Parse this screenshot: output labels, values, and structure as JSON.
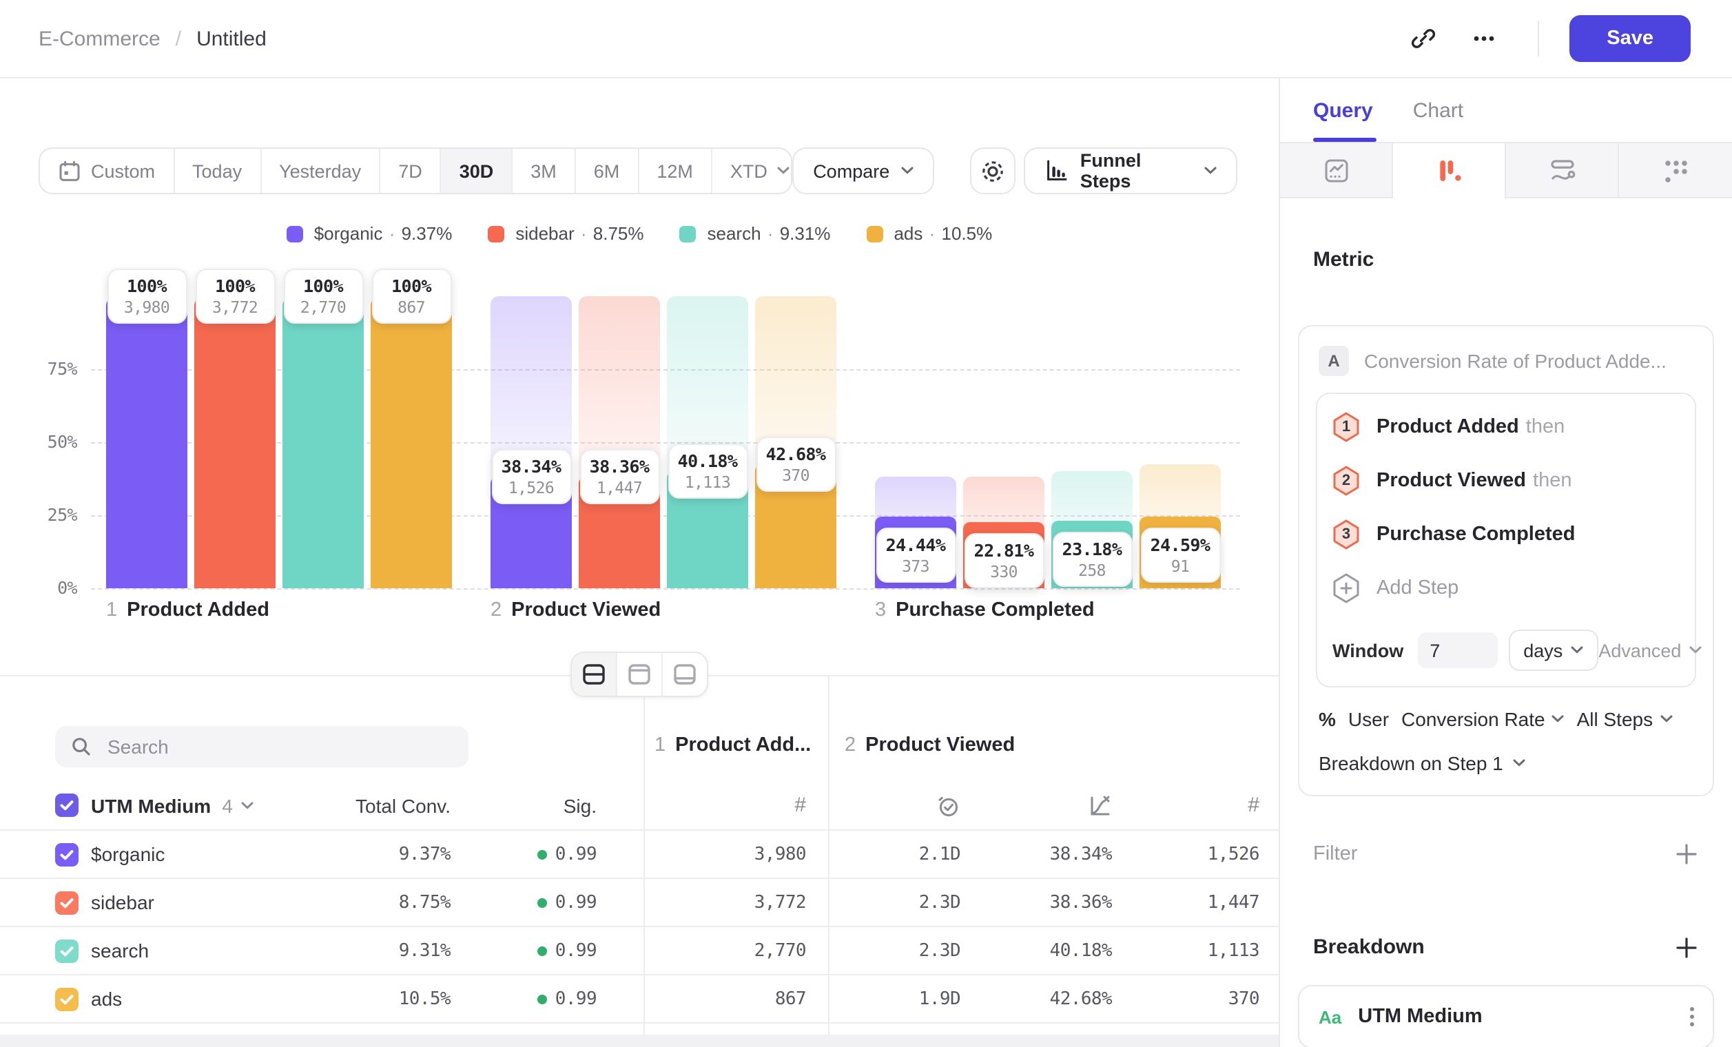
{
  "topbar": {
    "breadcrumb_project": "E-Commerce",
    "breadcrumb_sep": "/",
    "breadcrumb_name": "Untitled",
    "save_label": "Save",
    "icons": [
      "link-icon",
      "more-icon"
    ]
  },
  "toolbar": {
    "date_tabs": [
      {
        "label": "Custom",
        "icon": "calendar-icon"
      },
      {
        "label": "Today"
      },
      {
        "label": "Yesterday"
      },
      {
        "label": "7D"
      },
      {
        "label": "30D",
        "selected": true
      },
      {
        "label": "3M"
      },
      {
        "label": "6M"
      },
      {
        "label": "12M"
      },
      {
        "label": "XTD",
        "chevron": true
      }
    ],
    "compare_label": "Compare",
    "chart_type_label": "Funnel Steps"
  },
  "legend": {
    "separator": "·",
    "items": [
      {
        "name": "$organic",
        "value": "9.37%",
        "color": "#7b5cf5"
      },
      {
        "name": "sidebar",
        "value": "8.75%",
        "color": "#f4694f"
      },
      {
        "name": "search",
        "value": "9.31%",
        "color": "#6fd6c5"
      },
      {
        "name": "ads",
        "value": "10.5%",
        "color": "#f0b23e"
      }
    ]
  },
  "chart_data": {
    "type": "bar",
    "subtype": "funnel-steps",
    "grid": "dashed",
    "ylim": [
      0,
      100
    ],
    "ylabel_ticks": [
      "75%",
      "50%",
      "25%",
      "0%"
    ],
    "steps": [
      {
        "index": "1",
        "label": "Product Added"
      },
      {
        "index": "2",
        "label": "Product Viewed"
      },
      {
        "index": "3",
        "label": "Purchase Completed"
      }
    ],
    "series": [
      {
        "name": "$organic",
        "color": "#7b5cf5",
        "pct": [
          100,
          38.34,
          24.44
        ],
        "pct_labels": [
          "100%",
          "38.34%",
          "24.44%"
        ],
        "counts": [
          "3,980",
          "1,526",
          "373"
        ]
      },
      {
        "name": "sidebar",
        "color": "#f4694f",
        "pct": [
          100,
          38.36,
          22.81
        ],
        "pct_labels": [
          "100%",
          "38.36%",
          "22.81%"
        ],
        "counts": [
          "3,772",
          "1,447",
          "330"
        ]
      },
      {
        "name": "search",
        "color": "#6fd6c5",
        "pct": [
          100,
          40.18,
          23.18
        ],
        "pct_labels": [
          "100%",
          "40.18%",
          "23.18%"
        ],
        "counts": [
          "2,770",
          "1,113",
          "258"
        ]
      },
      {
        "name": "ads",
        "color": "#f0b23e",
        "pct": [
          100,
          42.68,
          24.59
        ],
        "pct_labels": [
          "100%",
          "42.68%",
          "24.59%"
        ],
        "counts": [
          "867",
          "370",
          "91"
        ]
      }
    ]
  },
  "view_toggle": {
    "options": [
      "split-view",
      "chart-only-view",
      "table-only-view"
    ],
    "selected": "split-view"
  },
  "table": {
    "search_placeholder": "Search",
    "group_header": {
      "label": "UTM Medium",
      "count": "4"
    },
    "columns": {
      "total_conv": "Total Conv.",
      "sig": "Sig."
    },
    "sections": [
      {
        "index": "1",
        "label": "Product Add..."
      },
      {
        "index": "2",
        "label": "Product Viewed"
      }
    ],
    "sig_dot_color": "#2fae6d",
    "rows": [
      {
        "name": "$organic",
        "color": "#7a5cf6",
        "total_conv": "9.37%",
        "sig": "0.99",
        "step1_count": "3,980",
        "time": "2.1D",
        "conv": "38.34%",
        "step2_count": "1,526"
      },
      {
        "name": "sidebar",
        "color": "#f87a61",
        "total_conv": "8.75%",
        "sig": "0.99",
        "step1_count": "3,772",
        "time": "2.3D",
        "conv": "38.36%",
        "step2_count": "1,447"
      },
      {
        "name": "search",
        "color": "#7fdbca",
        "total_conv": "9.31%",
        "sig": "0.99",
        "step1_count": "2,770",
        "time": "2.3D",
        "conv": "40.18%",
        "step2_count": "1,113"
      },
      {
        "name": "ads",
        "color": "#f4bd4e",
        "total_conv": "10.5%",
        "sig": "0.99",
        "step1_count": "867",
        "time": "1.9D",
        "conv": "42.68%",
        "step2_count": "370"
      }
    ]
  },
  "sidebar": {
    "tabs": [
      {
        "label": "Query",
        "active": true
      },
      {
        "label": "Chart",
        "active": false
      }
    ],
    "chart_type_tabs": [
      "line-chart",
      "funnel-chart",
      "flow-chart",
      "retention-grid"
    ],
    "active_chart_type": "funnel-chart",
    "metric_heading": "Metric",
    "metric": {
      "badge": "A",
      "label": "Conversion Rate of Product Adde..."
    },
    "steps": [
      {
        "num": "1",
        "label": "Product Added",
        "suffix": "then"
      },
      {
        "num": "2",
        "label": "Product Viewed",
        "suffix": "then"
      },
      {
        "num": "3",
        "label": "Purchase Completed",
        "suffix": ""
      }
    ],
    "add_step_label": "Add Step",
    "window": {
      "label": "Window",
      "value": "7",
      "unit": "days",
      "advanced_label": "Advanced"
    },
    "measured_as": {
      "prefix": "%",
      "entity": "User",
      "metric": "Conversion Rate",
      "scope": "All Steps"
    },
    "breakdown_on": "Breakdown on Step 1",
    "filter_heading": "Filter",
    "breakdown_heading": "Breakdown",
    "breakdown_item": {
      "type_badge": "Aa",
      "badge_color": "#3cb878",
      "label": "UTM Medium"
    }
  }
}
